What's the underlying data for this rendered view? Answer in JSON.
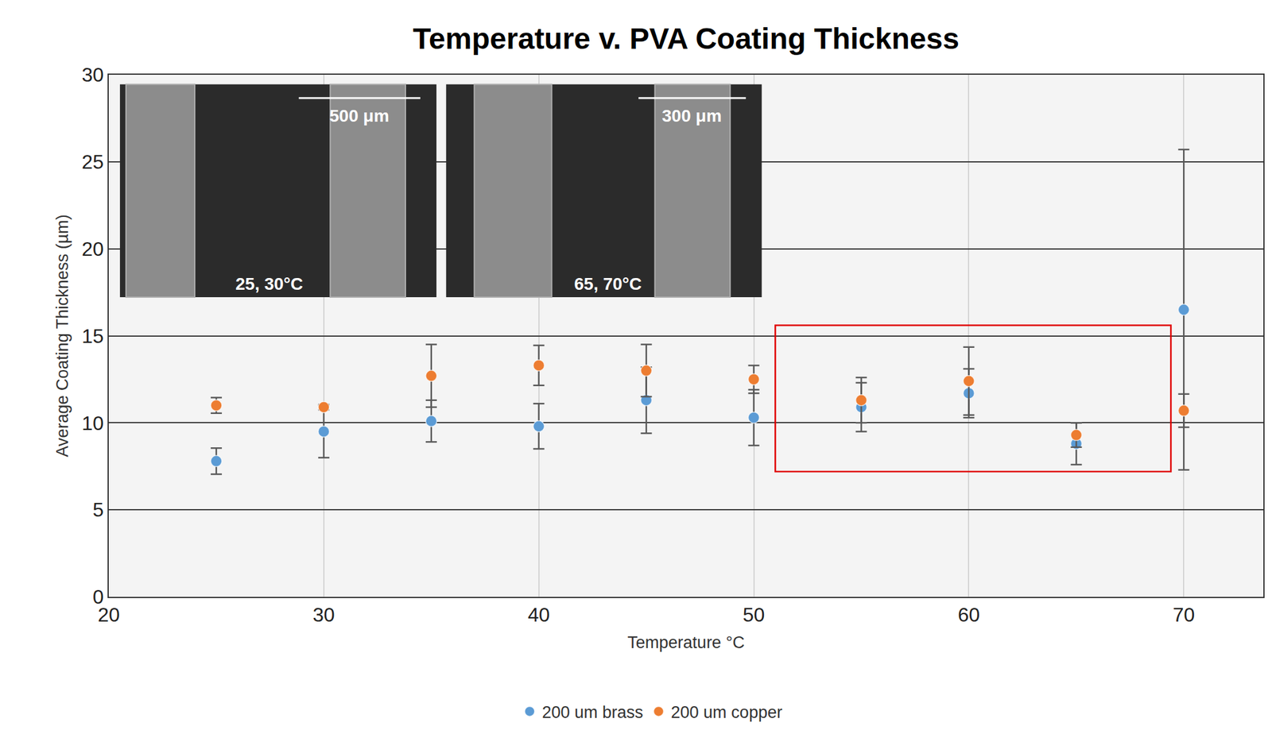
{
  "chart_data": {
    "type": "scatter",
    "title": "Temperature v. PVA Coating Thickness",
    "x_label": "Temperature °C",
    "y_label": "Average Coating Thickness (µm)",
    "x": [
      25,
      30,
      35,
      40,
      45,
      50,
      55,
      60,
      65,
      70
    ],
    "series": [
      {
        "name": "200 um brass",
        "color": "#5b9bd5",
        "marker": "circle",
        "values": [
          7.8,
          9.5,
          10.1,
          9.8,
          11.3,
          10.3,
          10.9,
          11.7,
          8.8,
          16.5
        ],
        "errors": [
          0.75,
          1.5,
          1.2,
          1.3,
          1.9,
          1.6,
          1.4,
          1.4,
          1.2,
          9.2
        ]
      },
      {
        "name": "200 um copper",
        "color": "#ed7d31",
        "marker": "circle",
        "values": [
          11.0,
          10.9,
          12.7,
          13.3,
          13.0,
          12.5,
          11.3,
          12.4,
          9.3,
          10.7
        ],
        "errors": [
          0.45,
          0.15,
          1.8,
          1.15,
          1.5,
          0.8,
          1.3,
          1.95,
          0.7,
          0.95
        ]
      }
    ],
    "xlim": [
      20,
      73.7
    ],
    "ylim": [
      0,
      30
    ],
    "xticks": [
      20,
      30,
      40,
      50,
      60,
      70
    ],
    "yticks": [
      0,
      5,
      10,
      15,
      20,
      25,
      30
    ],
    "grid": true,
    "legend": "bottom",
    "highlight": {
      "x": [
        51,
        69.4
      ],
      "y": [
        7.2,
        15.6
      ],
      "color": "#e00000"
    },
    "insets": [
      {
        "scale_bar": "500 μm",
        "label": "25, 30°C"
      },
      {
        "scale_bar": "300 μm",
        "label": "65, 70°C"
      }
    ]
  }
}
